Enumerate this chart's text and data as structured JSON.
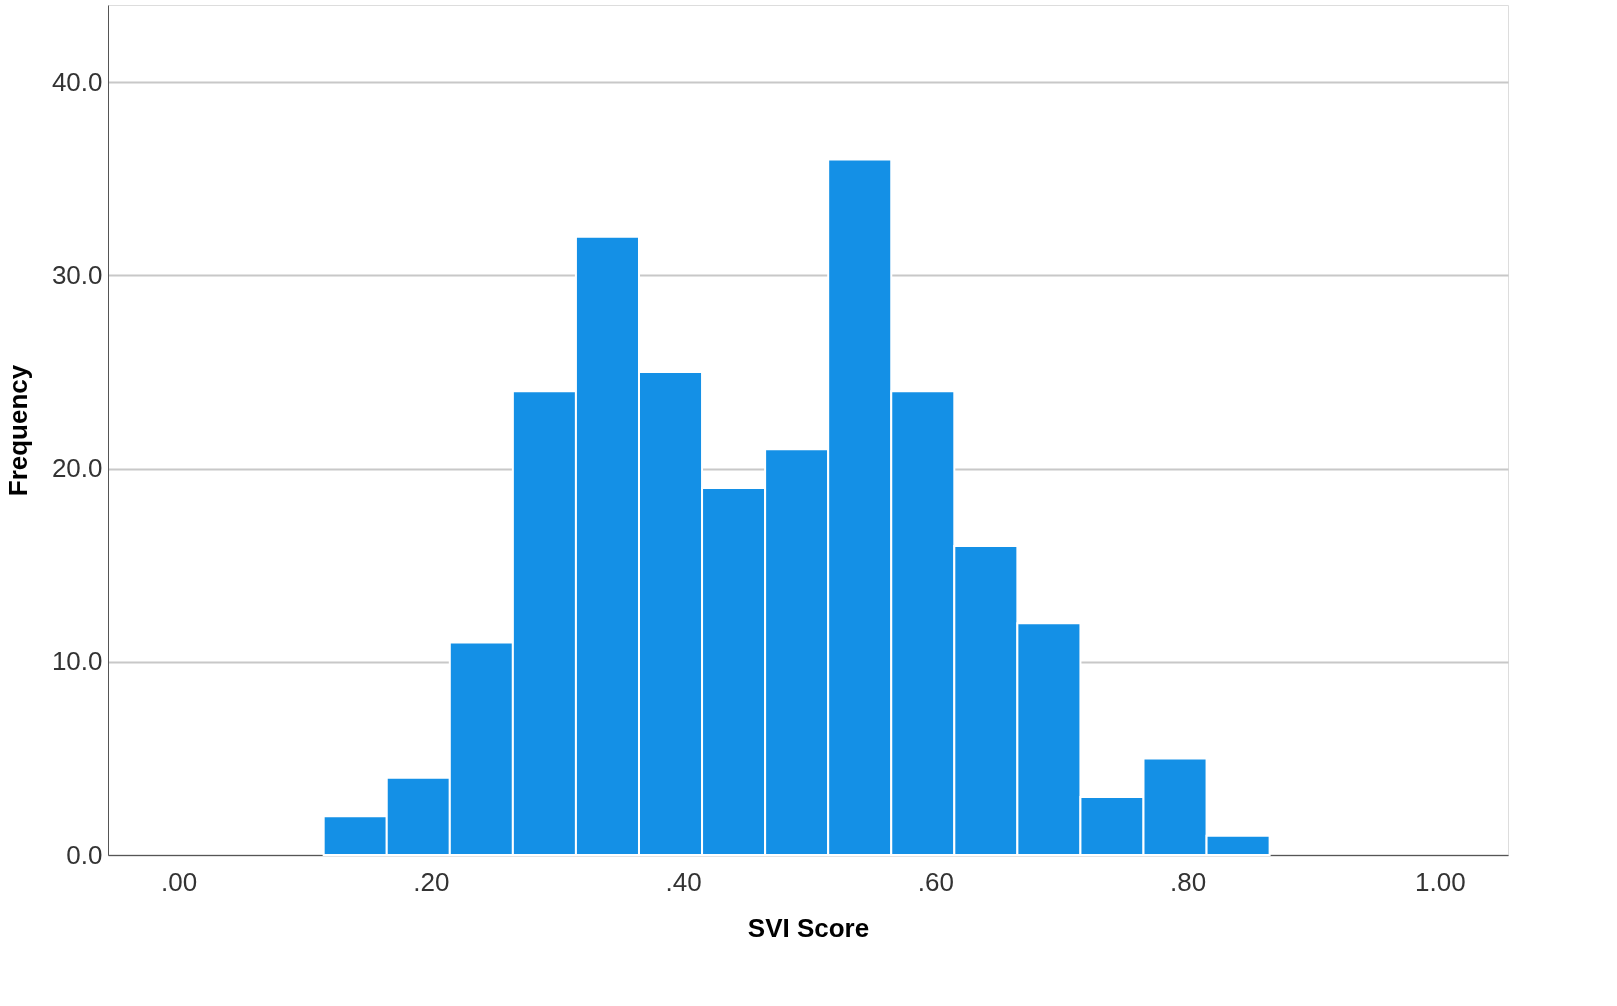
{
  "chart_data": {
    "type": "histogram",
    "xlabel": "SVI Score",
    "ylabel": "Frequency",
    "color": "#1490e6",
    "bins": [
      0.115,
      0.165,
      0.215,
      0.265,
      0.315,
      0.365,
      0.415,
      0.465,
      0.515,
      0.565,
      0.615,
      0.665,
      0.715,
      0.765,
      0.815,
      0.865
    ],
    "values": [
      2,
      4,
      11,
      24,
      32,
      25,
      19,
      21,
      36,
      24,
      16,
      12,
      3,
      5,
      1
    ],
    "xlim": [
      -0.056,
      1.054
    ],
    "xticks": [
      {
        "value": 0,
        "label": ".00"
      },
      {
        "value": 0.2,
        "label": ".20"
      },
      {
        "value": 0.4,
        "label": ".40"
      },
      {
        "value": 0.6,
        "label": ".60"
      },
      {
        "value": 0.8,
        "label": ".80"
      },
      {
        "value": 1.0,
        "label": "1.00"
      }
    ],
    "ylim": [
      0,
      44
    ],
    "yticks": [
      {
        "value": 0,
        "label": "0.0"
      },
      {
        "value": 10,
        "label": "10.0"
      },
      {
        "value": 20,
        "label": "20.0"
      },
      {
        "value": 30,
        "label": "30.0"
      },
      {
        "value": 40,
        "label": "40.0"
      }
    ],
    "grid": "y"
  }
}
